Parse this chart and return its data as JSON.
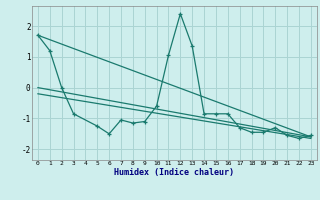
{
  "xlabel": "Humidex (Indice chaleur)",
  "xlim": [
    -0.5,
    23.5
  ],
  "ylim": [
    -2.35,
    2.65
  ],
  "background_color": "#ceeeed",
  "grid_color": "#aad4d3",
  "line_color": "#1a7a6e",
  "xticks": [
    0,
    1,
    2,
    3,
    4,
    5,
    6,
    7,
    8,
    9,
    10,
    11,
    12,
    13,
    14,
    15,
    16,
    17,
    18,
    19,
    20,
    21,
    22,
    23
  ],
  "yticks": [
    -2,
    -1,
    0,
    1,
    2
  ],
  "line1_x": [
    0,
    1,
    2,
    3,
    5,
    6,
    7,
    8,
    9,
    10,
    11,
    12,
    13,
    14,
    15,
    16,
    17,
    18,
    19,
    20,
    21,
    22,
    23
  ],
  "line1_y": [
    1.7,
    1.2,
    0.0,
    -0.85,
    -1.25,
    -1.5,
    -1.05,
    -1.15,
    -1.1,
    -0.6,
    1.05,
    2.4,
    1.35,
    -0.85,
    -0.85,
    -0.85,
    -1.3,
    -1.45,
    -1.45,
    -1.3,
    -1.55,
    -1.65,
    -1.55
  ],
  "line2_x": [
    0,
    23
  ],
  "line2_y": [
    1.7,
    -1.6
  ],
  "line3_x": [
    0,
    23
  ],
  "line3_y": [
    0.0,
    -1.6
  ],
  "line4_x": [
    0,
    23
  ],
  "line4_y": [
    -0.2,
    -1.65
  ]
}
